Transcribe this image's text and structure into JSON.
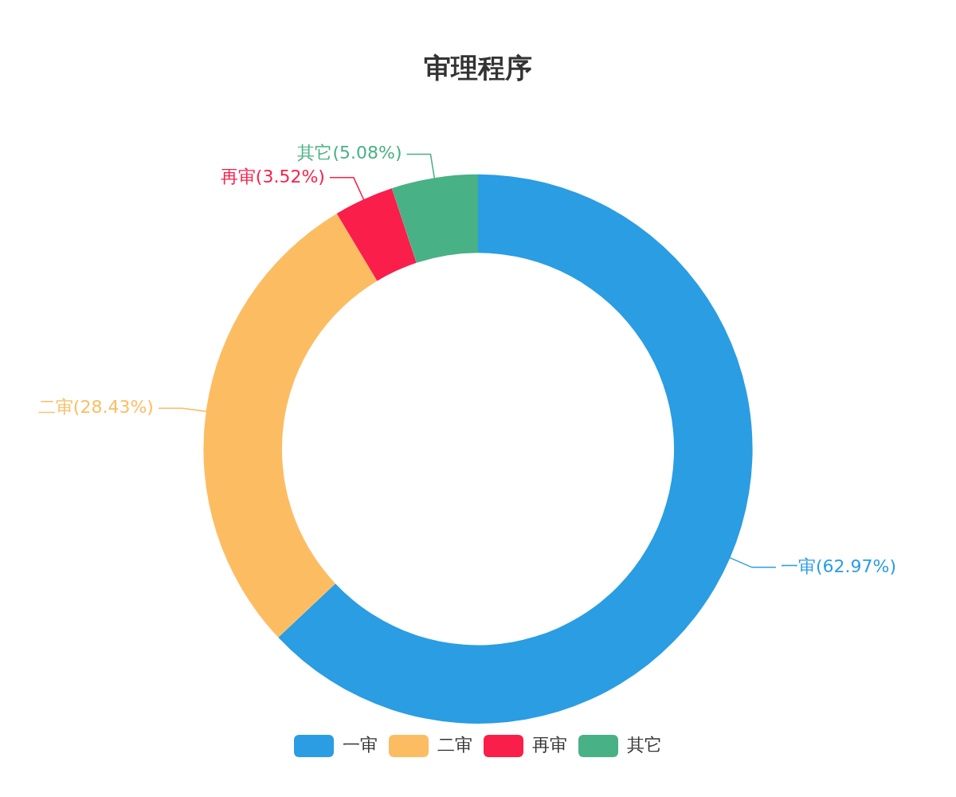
{
  "chart_data": {
    "type": "donut",
    "title": "审理程序",
    "categories": [
      "一审",
      "二审",
      "再审",
      "其它"
    ],
    "values": [
      62.97,
      28.43,
      3.52,
      5.08
    ],
    "colors": [
      "#2a9de3",
      "#fcbd62",
      "#f91f4a",
      "#48b185"
    ],
    "value_labels": [
      "一审(62.97%)",
      "二审(28.43%)",
      "再审(3.52%)",
      "其它(5.08%)"
    ],
    "legend": "bottom"
  }
}
